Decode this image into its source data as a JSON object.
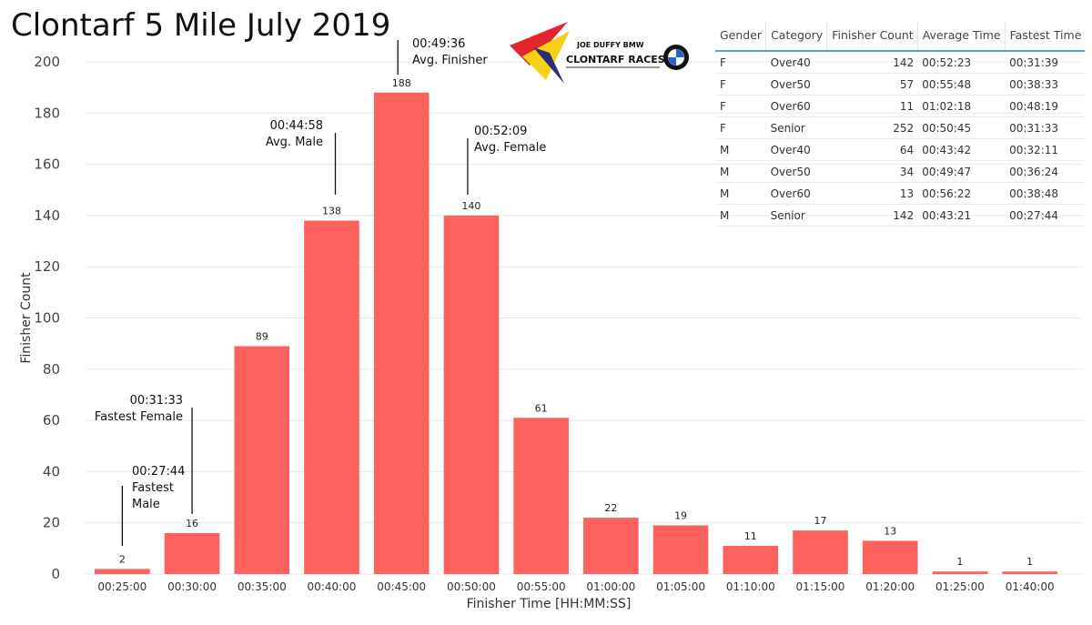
{
  "title": "Clontarf 5 Mile July 2019",
  "logo": {
    "sponsor": "JOE DUFFY BMW",
    "name": "CLONTARF RACES",
    "colors": {
      "red": "#e3262d",
      "yellow": "#f7d117",
      "navy": "#2b2f7a"
    }
  },
  "chart_data": {
    "type": "bar",
    "xlabel": "Finisher Time [HH:MM:SS]",
    "ylabel": "Finisher Count",
    "ylim": [
      0,
      200
    ],
    "yticks": [
      0,
      20,
      40,
      60,
      80,
      100,
      120,
      140,
      160,
      180,
      200
    ],
    "grid": true,
    "bar_color": "#fd625e",
    "categories": [
      "00:25:00",
      "00:30:00",
      "00:35:00",
      "00:40:00",
      "00:45:00",
      "00:50:00",
      "00:55:00",
      "01:00:00",
      "01:05:00",
      "01:10:00",
      "01:15:00",
      "01:20:00",
      "01:25:00",
      "01:40:00"
    ],
    "values": [
      2,
      16,
      89,
      138,
      188,
      140,
      61,
      22,
      19,
      11,
      17,
      13,
      1,
      1
    ],
    "annotations": [
      {
        "category": "00:25:00",
        "lines": [
          "00:27:44",
          "Fastest",
          "Male"
        ]
      },
      {
        "category": "00:30:00",
        "lines": [
          "00:31:33",
          "Fastest Female"
        ]
      },
      {
        "category": "00:40:00",
        "lines": [
          "00:44:58",
          "Avg. Male"
        ]
      },
      {
        "category": "00:45:00",
        "lines": [
          "00:49:36",
          "Avg. Finisher"
        ]
      },
      {
        "category": "00:50:00",
        "lines": [
          "00:52:09",
          "Avg. Female"
        ]
      }
    ]
  },
  "table": {
    "headers": [
      "Gender",
      "Category",
      "Finisher Count",
      "Average Time",
      "Fastest Time"
    ],
    "rows": [
      [
        "F",
        "Over40",
        "142",
        "00:52:23",
        "00:31:39"
      ],
      [
        "F",
        "Over50",
        "57",
        "00:55:48",
        "00:38:33"
      ],
      [
        "F",
        "Over60",
        "11",
        "01:02:18",
        "00:48:19"
      ],
      [
        "F",
        "Senior",
        "252",
        "00:50:45",
        "00:31:33"
      ],
      [
        "M",
        "Over40",
        "64",
        "00:43:42",
        "00:32:11"
      ],
      [
        "M",
        "Over50",
        "34",
        "00:49:47",
        "00:36:24"
      ],
      [
        "M",
        "Over60",
        "13",
        "00:56:22",
        "00:38:48"
      ],
      [
        "M",
        "Senior",
        "142",
        "00:43:21",
        "00:27:44"
      ]
    ]
  }
}
